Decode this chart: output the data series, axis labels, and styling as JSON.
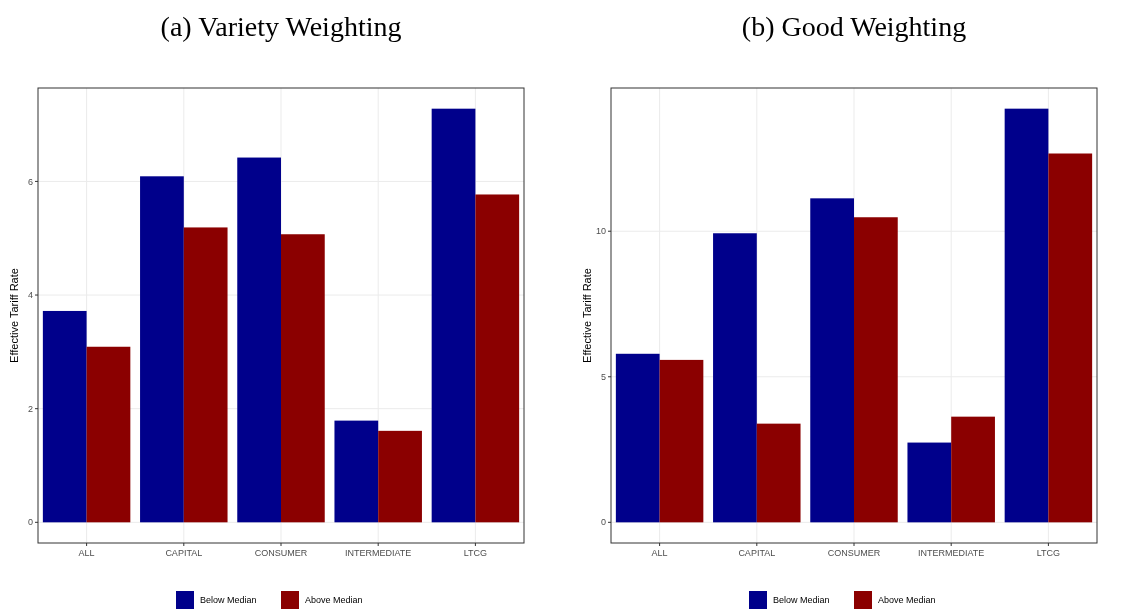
{
  "chart_data": [
    {
      "type": "bar",
      "title": "(a) Variety Weighting",
      "ylabel": "Effective Tariff Rate",
      "categories": [
        "ALL",
        "CAPITAL",
        "CONSUMER",
        "INTERMEDIATE",
        "LTCG"
      ],
      "series": [
        {
          "name": "Below Median",
          "color": "#00008b",
          "values": [
            3.72,
            6.09,
            6.42,
            1.79,
            7.28
          ]
        },
        {
          "name": "Above Median",
          "color": "#8b0000",
          "values": [
            3.09,
            5.19,
            5.07,
            1.61,
            5.77
          ]
        }
      ],
      "ylim": [
        -0.364,
        7.644
      ],
      "yticks": [
        0,
        2,
        4,
        6
      ],
      "grid": true,
      "legend": "bottom"
    },
    {
      "type": "bar",
      "title": "(b) Good Weighting",
      "ylabel": "Effective Tariff Rate",
      "categories": [
        "ALL",
        "CAPITAL",
        "CONSUMER",
        "INTERMEDIATE",
        "LTCG"
      ],
      "series": [
        {
          "name": "Below Median",
          "color": "#00008b",
          "values": [
            5.79,
            9.93,
            11.13,
            2.74,
            14.21
          ]
        },
        {
          "name": "Above Median",
          "color": "#8b0000",
          "values": [
            5.58,
            3.39,
            10.48,
            3.63,
            12.67
          ]
        }
      ],
      "ylim": [
        -0.71,
        14.92
      ],
      "yticks": [
        0,
        5,
        10
      ],
      "grid": true,
      "legend": "bottom"
    }
  ]
}
